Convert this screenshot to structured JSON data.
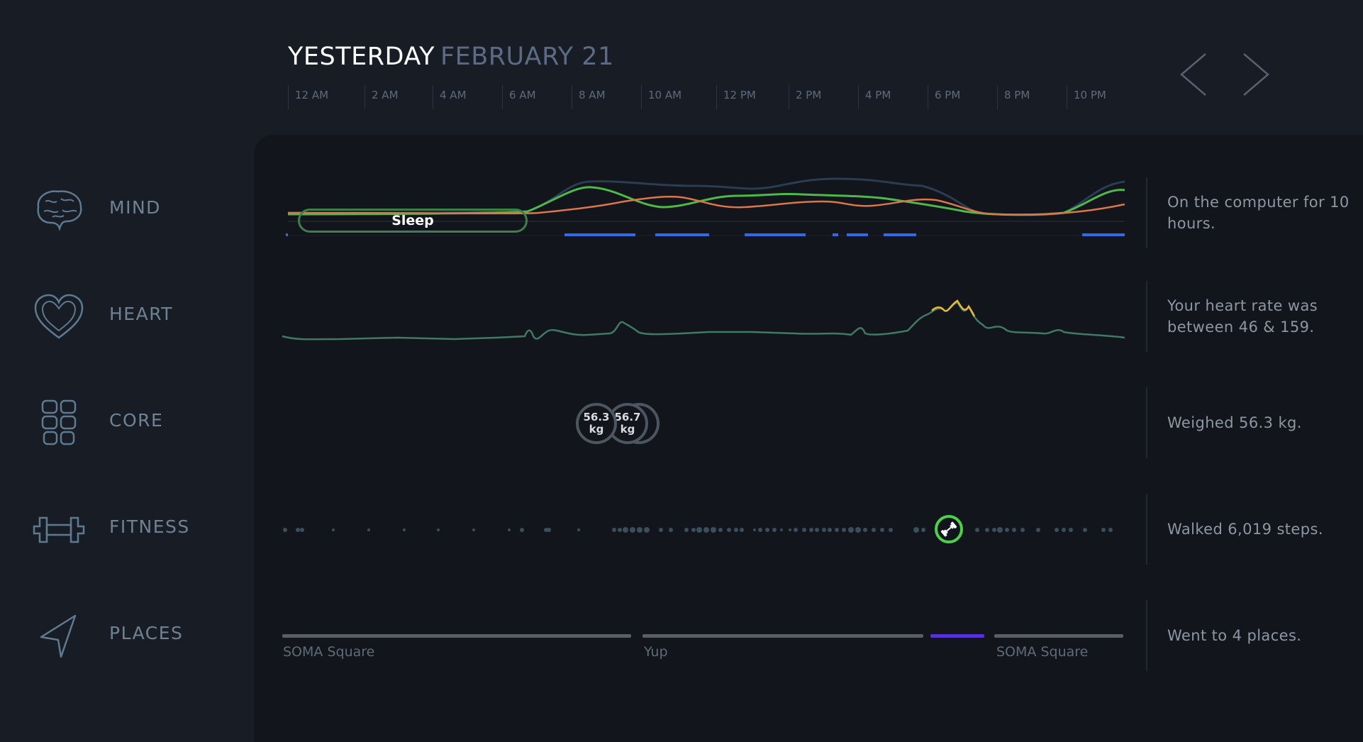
{
  "header": {
    "day_label": "YESTERDAY",
    "date_label": "FEBRUARY 21",
    "prev_icon": "chevron-left-icon",
    "next_icon": "chevron-right-icon"
  },
  "time_axis": [
    "12 AM",
    "2 AM",
    "4 AM",
    "6 AM",
    "8 AM",
    "10 AM",
    "12 PM",
    "2 PM",
    "4 PM",
    "6 PM",
    "8 PM",
    "10 PM"
  ],
  "categories": [
    {
      "id": "mind",
      "label": "MIND",
      "icon": "brain-icon",
      "summary": "On the computer for 10 hours."
    },
    {
      "id": "heart",
      "label": "HEART",
      "icon": "heart-icon",
      "summary": "Your heart rate was between 46 & 159."
    },
    {
      "id": "core",
      "label": "CORE",
      "icon": "abs-icon",
      "summary": "Weighed 56.3 kg."
    },
    {
      "id": "fitness",
      "label": "FITNESS",
      "icon": "dumbbell-icon",
      "summary": "Walked 6,019 steps."
    },
    {
      "id": "places",
      "label": "PLACES",
      "icon": "navigation-arrow-icon",
      "summary": "Went to 4 places."
    }
  ],
  "mind": {
    "sleep_label": "Sleep"
  },
  "core": {
    "weights": [
      {
        "value": "56.3",
        "unit": "kg"
      },
      {
        "value": "56.7",
        "unit": "kg"
      }
    ]
  },
  "places": {
    "labels": [
      "SOMA Square",
      "Yup",
      "SOMA Square"
    ],
    "colors": {
      "visit": "#5a5f66",
      "transit": "#5b2fd6"
    }
  },
  "colors": {
    "background": "#181c24",
    "panel": "#12151b",
    "green": "#4dd04a",
    "orange": "#d9764a",
    "heart_line": "#3f7a62",
    "heart_peak": "#e5b83b",
    "screen_time": "#2f6be8"
  }
}
